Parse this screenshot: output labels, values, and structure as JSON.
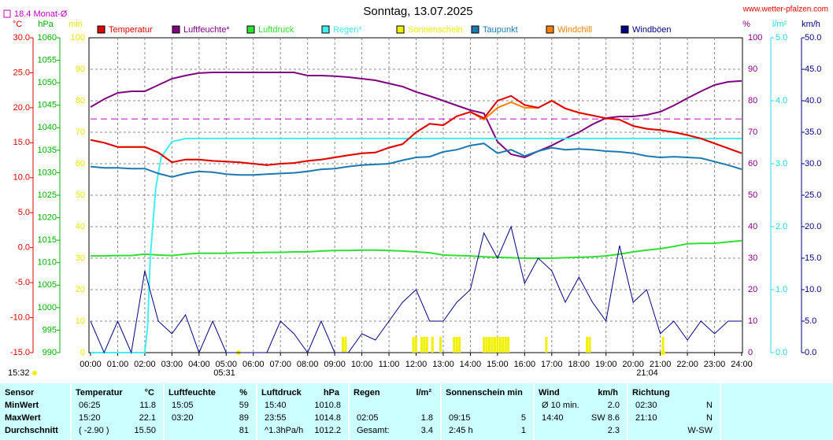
{
  "chart_data": {
    "type": "line",
    "title": "Sonntag, 13.07.2025",
    "source": "www.wetter-pfalzen.com",
    "monthly_avg": {
      "value": 18.4,
      "label": "18.4 Monat-Ø",
      "color": "#c000c0"
    },
    "time_note": "15:32",
    "sunrise": "05:31",
    "sunset": "21:04",
    "grid": true,
    "xlim": [
      0,
      24
    ],
    "xticks": [
      {
        "value": 0,
        "label": "00:00"
      },
      {
        "value": 1,
        "label": "01:00"
      },
      {
        "value": 2,
        "label": "02:00"
      },
      {
        "value": 3,
        "label": "03:00"
      },
      {
        "value": 4,
        "label": "04:00"
      },
      {
        "value": 5,
        "label": "05:00"
      },
      {
        "value": 6,
        "label": "06:00"
      },
      {
        "value": 7,
        "label": "07:00"
      },
      {
        "value": 8,
        "label": "08:00"
      },
      {
        "value": 9,
        "label": "09:00"
      },
      {
        "value": 10,
        "label": "10:00"
      },
      {
        "value": 11,
        "label": "11:00"
      },
      {
        "value": 12,
        "label": "12:00"
      },
      {
        "value": 13,
        "label": "13:00"
      },
      {
        "value": 14,
        "label": "14:00"
      },
      {
        "value": 15,
        "label": "15:00"
      },
      {
        "value": 16,
        "label": "16:00"
      },
      {
        "value": 17,
        "label": "17:00"
      },
      {
        "value": 18,
        "label": "18:00"
      },
      {
        "value": 19,
        "label": "19:00"
      },
      {
        "value": 20,
        "label": "20:00"
      },
      {
        "value": 21,
        "label": "21:00"
      },
      {
        "value": 22,
        "label": "22:00"
      },
      {
        "value": 23,
        "label": "23:00"
      },
      {
        "value": 24,
        "label": "24:00"
      }
    ],
    "axes": {
      "temp": {
        "unit": "°C",
        "color": "#e00000",
        "lim": [
          -15,
          30
        ],
        "ticks": [
          {
            "value": -15,
            "label": "-15.0"
          },
          {
            "value": -10,
            "label": "-10.0"
          },
          {
            "value": -5,
            "label": "-5.0"
          },
          {
            "value": 0,
            "label": "0.0"
          },
          {
            "value": 5,
            "label": "5.0"
          },
          {
            "value": 10,
            "label": "10.0"
          },
          {
            "value": 15,
            "label": "15.0"
          },
          {
            "value": 20,
            "label": "20.0"
          },
          {
            "value": 25,
            "label": "25.0"
          },
          {
            "value": 30,
            "label": "30.0"
          }
        ]
      },
      "hpa": {
        "unit": "hPa",
        "color": "#00b000",
        "lim": [
          990,
          1060
        ],
        "ticks": [
          990,
          995,
          1000,
          1005,
          1010,
          1015,
          1020,
          1025,
          1030,
          1035,
          1040,
          1045,
          1050,
          1055,
          1060
        ]
      },
      "min": {
        "unit": "min",
        "color": "#e8e800",
        "lim": [
          0,
          100
        ],
        "ticks": [
          0,
          10,
          20,
          30,
          40,
          50,
          60,
          70,
          80,
          90,
          100
        ]
      },
      "pct": {
        "unit": "%",
        "color": "#800080",
        "lim": [
          0,
          100
        ],
        "ticks": [
          0,
          10,
          20,
          30,
          40,
          50,
          60,
          70,
          80,
          90,
          100
        ]
      },
      "rain": {
        "unit": "l/m²",
        "color": "#20d8e0",
        "lim": [
          0,
          5
        ],
        "ticks": [
          {
            "value": 0,
            "label": "0.0"
          },
          {
            "value": 1,
            "label": "1.0"
          },
          {
            "value": 2,
            "label": "2.0"
          },
          {
            "value": 3,
            "label": "3.0"
          },
          {
            "value": 4,
            "label": "4.0"
          },
          {
            "value": 5,
            "label": "5.0"
          }
        ]
      },
      "wind": {
        "unit": "km/h",
        "color": "#000080",
        "lim": [
          0,
          50
        ],
        "ticks": [
          {
            "value": 0,
            "label": "0.0"
          },
          {
            "value": 5,
            "label": "5.0"
          },
          {
            "value": 10,
            "label": "10.0"
          },
          {
            "value": 15,
            "label": "15.0"
          },
          {
            "value": 20,
            "label": "20.0"
          },
          {
            "value": 25,
            "label": "25.0"
          },
          {
            "value": 30,
            "label": "30.0"
          },
          {
            "value": 35,
            "label": "35.0"
          },
          {
            "value": 40,
            "label": "40.0"
          },
          {
            "value": 45,
            "label": "45.0"
          },
          {
            "value": 50,
            "label": "50.0"
          }
        ]
      }
    },
    "x": [
      0,
      0.5,
      1,
      1.5,
      2,
      2.5,
      3,
      3.5,
      4,
      4.5,
      5,
      5.5,
      6,
      6.5,
      7,
      7.5,
      8,
      8.5,
      9,
      9.5,
      10,
      10.5,
      11,
      11.5,
      12,
      12.5,
      13,
      13.5,
      14,
      14.5,
      15,
      15.5,
      16,
      16.5,
      17,
      17.5,
      18,
      18.5,
      19,
      19.5,
      20,
      20.5,
      21,
      21.5,
      22,
      22.5,
      23,
      23.5,
      24
    ],
    "series": [
      {
        "name": "Temperatur",
        "color": "#e00000",
        "axis": "temp",
        "values": [
          15.4,
          15.0,
          14.4,
          14.4,
          14.4,
          13.6,
          12.2,
          12.6,
          12.6,
          12.4,
          12.3,
          12.2,
          12.0,
          11.8,
          12.0,
          12.1,
          12.4,
          12.6,
          12.9,
          13.2,
          13.5,
          13.6,
          14.3,
          14.8,
          16.5,
          17.7,
          17.5,
          18.8,
          19.4,
          18.5,
          21.0,
          21.7,
          20.4,
          20.0,
          21.0,
          19.9,
          19.3,
          18.9,
          18.5,
          18.3,
          17.4,
          17.0,
          16.8,
          16.5,
          16.1,
          15.6,
          14.9,
          14.2,
          13.5
        ]
      },
      {
        "name": "Luftfeuchte*",
        "color": "#800080",
        "axis": "pct",
        "values": [
          78,
          80.5,
          82.5,
          83,
          83,
          85,
          87,
          88,
          88.8,
          89,
          89,
          89,
          89,
          89,
          89,
          89,
          88,
          88,
          87.8,
          87.5,
          87,
          86.5,
          85.5,
          84.5,
          82.8,
          81.5,
          80,
          78.5,
          77,
          76,
          67,
          63,
          62,
          64,
          65.8,
          68,
          70,
          72.5,
          74.5,
          75,
          75,
          75.5,
          76.5,
          78.5,
          80.8,
          83,
          85,
          86,
          86.3
        ]
      },
      {
        "name": "Luftdruck",
        "color": "#30e030",
        "axis": "hpa",
        "values": [
          1011.5,
          1011.5,
          1011.6,
          1011.6,
          1011.9,
          1011.7,
          1011.6,
          1011.9,
          1012.1,
          1012.1,
          1012.1,
          1012.2,
          1012.2,
          1012.3,
          1012.3,
          1012.4,
          1012.4,
          1012.6,
          1012.7,
          1012.7,
          1012.8,
          1012.8,
          1012.7,
          1012.6,
          1012.4,
          1012.2,
          1011.7,
          1011.6,
          1011.5,
          1011.3,
          1011.2,
          1011.1,
          1011.0,
          1011.0,
          1011.0,
          1011.1,
          1011.2,
          1011.3,
          1011.5,
          1011.9,
          1012.4,
          1012.8,
          1013.1,
          1013.6,
          1014.2,
          1014.3,
          1014.3,
          1014.6,
          1014.9
        ]
      },
      {
        "name": "Regen*",
        "color": "#40f0f0",
        "axis": "rain",
        "x": [
          0,
          2,
          2.1,
          2.2,
          2.4,
          2.6,
          3,
          3.5,
          24
        ],
        "values": [
          0,
          0,
          0.4,
          1.5,
          2.6,
          3.1,
          3.35,
          3.4,
          3.4
        ]
      },
      {
        "name": "Sonnenschein",
        "color": "#f0f000",
        "axis": "min",
        "type": "bar",
        "x": [
          9.3,
          9.4,
          11.9,
          12.0,
          12.2,
          12.3,
          12.4,
          12.6,
          12.9,
          13.4,
          13.5,
          13.6,
          14.5,
          14.6,
          14.7,
          14.8,
          14.9,
          15.0,
          15.1,
          15.2,
          15.3,
          15.4,
          16.8,
          18.3,
          18.4,
          21.1
        ],
        "values": [
          5,
          5,
          5,
          5,
          5,
          5,
          5,
          5,
          5,
          5,
          5,
          5,
          5,
          5,
          5,
          5,
          5,
          5,
          5,
          5,
          5,
          5,
          5,
          5,
          5,
          5
        ]
      },
      {
        "name": "Taupunkt",
        "color": "#1a7ab0",
        "axis": "temp",
        "values": [
          11.6,
          11.4,
          11.4,
          11.3,
          11.3,
          10.6,
          10.1,
          10.6,
          10.9,
          10.8,
          10.5,
          10.4,
          10.4,
          10.5,
          10.6,
          10.7,
          10.9,
          11.2,
          11.3,
          11.6,
          11.8,
          11.9,
          12.0,
          12.5,
          12.9,
          13.0,
          13.7,
          14.0,
          14.6,
          14.9,
          13.5,
          14.0,
          13.1,
          13.8,
          14.3,
          14.0,
          14.1,
          14.0,
          13.8,
          13.7,
          13.5,
          13.1,
          12.9,
          13.0,
          12.9,
          12.8,
          12.3,
          11.8,
          11.2
        ]
      },
      {
        "name": "Windchill",
        "color": "#ff8000",
        "axis": "temp",
        "values": [
          15.4,
          15.0,
          14.4,
          14.4,
          14.4,
          13.6,
          12.2,
          12.6,
          12.6,
          12.4,
          12.3,
          12.2,
          12.0,
          11.8,
          12.0,
          12.1,
          12.4,
          12.6,
          12.9,
          13.2,
          13.5,
          13.6,
          14.3,
          14.8,
          16.5,
          17.7,
          17.5,
          18.8,
          19.4,
          18.3,
          20.0,
          20.8,
          20.0,
          20.0,
          21.0,
          19.9,
          19.3,
          18.9,
          18.5,
          18.3,
          17.4,
          17.0,
          16.8,
          16.5,
          16.1,
          15.6,
          14.9,
          14.2,
          13.5
        ]
      },
      {
        "name": "Windböen",
        "color": "#000080",
        "axis": "wind",
        "values": [
          5,
          0,
          5,
          0,
          13,
          5,
          3,
          6,
          0,
          5,
          0,
          0,
          0,
          0,
          5,
          3,
          0,
          5,
          0,
          0,
          3,
          2,
          5,
          8,
          10,
          5,
          5,
          8,
          10,
          19,
          15,
          20,
          11,
          15,
          13,
          8,
          12,
          8,
          5,
          17,
          8,
          10,
          3,
          5,
          2,
          5,
          3,
          5,
          5
        ]
      }
    ]
  },
  "table": {
    "columns": [
      {
        "title": "Sensor"
      },
      {
        "title": "Temperatur",
        "unit": "°C"
      },
      {
        "title": "Luftfeuchte",
        "unit": "%"
      },
      {
        "title": "Luftdruck",
        "unit": "hPa"
      },
      {
        "title": "Regen",
        "unit": "l/m²"
      },
      {
        "title": "Sonnenschein min"
      },
      {
        "title": "Wind",
        "unit": "km/h"
      },
      {
        "title": "Richtung"
      }
    ],
    "rows": [
      {
        "label": "MinWert",
        "cells": [
          {
            "a": "06:25",
            "b": "11.8"
          },
          {
            "a": "15:05",
            "b": "59"
          },
          {
            "a": "15:40",
            "b": "1010.8"
          },
          null,
          null,
          {
            "a": "Ø 10 min.",
            "b": "2.0"
          },
          {
            "a": "02:30",
            "b": "N"
          }
        ]
      },
      {
        "label": "MaxWert",
        "cells": [
          {
            "a": "15:20",
            "b": "22.1"
          },
          {
            "a": "03:20",
            "b": "89"
          },
          {
            "a": "23:55",
            "b": "1014.8"
          },
          {
            "a": "02:05",
            "b": "1.8"
          },
          {
            "a": "09:15",
            "b": "5"
          },
          {
            "a": "14:40",
            "b": "SW 8.6"
          },
          {
            "a": "21:10",
            "b": "N"
          }
        ]
      },
      {
        "label": "Durchschnitt",
        "cells": [
          {
            "a": "( -2.90 )",
            "b": "15.50"
          },
          {
            "b": "81"
          },
          {
            "a": "^1.3hPa/h",
            "b": "1012.2"
          },
          {
            "a": "Gesamt:",
            "b": "3.4"
          },
          {
            "a": "2:45 h",
            "b": "1"
          },
          {
            "b": "2.3"
          },
          {
            "b": "W-SW"
          }
        ]
      }
    ]
  }
}
